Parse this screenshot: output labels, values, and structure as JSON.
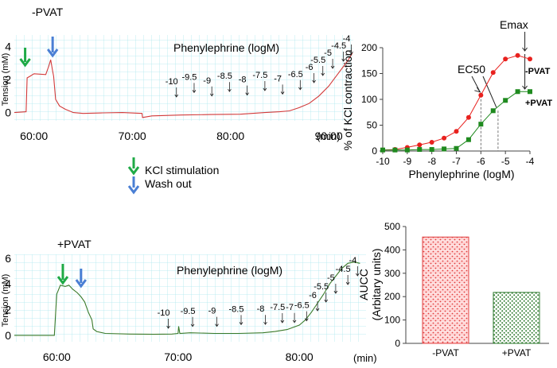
{
  "figure_legend": {
    "kcl": "KCl stimulation",
    "wash": "Wash out"
  },
  "chart_data": [
    {
      "id": "trace_no_pvat",
      "type": "line",
      "title": "-PVAT",
      "annotation": "Phenylephrine (logM)",
      "ylabel": "Tension (mM)",
      "xlabel": "(min)",
      "x_ticks": [
        "60:00",
        "70:00",
        "80:00",
        "90:00"
      ],
      "x_tick_values": [
        60,
        70,
        80,
        90
      ],
      "xlim": [
        58,
        92.5
      ],
      "y_ticks": [
        0,
        2,
        4
      ],
      "ylim": [
        -0.5,
        4.7
      ],
      "color": "#d23a3a",
      "kcl_time": 59.1,
      "wash_time": 61.9,
      "dose_labels": [
        "-10",
        "-9.5",
        "-9",
        "-8.5",
        "-8",
        "-7.5",
        "-7",
        "-6.5",
        "-6",
        "-5.5",
        "-5",
        "-4.5",
        "-4"
      ],
      "dose_times": [
        74.5,
        76.3,
        78.1,
        79.9,
        81.7,
        83.5,
        85.3,
        87.1,
        88.5,
        89.4,
        90.4,
        91.5,
        92.3
      ],
      "trace": {
        "x": [
          58.0,
          59.2,
          59.3,
          59.6,
          60.0,
          61.2,
          61.5,
          61.7,
          61.9,
          62.0,
          62.2,
          62.6,
          63.2,
          64.0,
          65.0,
          67.0,
          69.0,
          71.0,
          71.05,
          72.0,
          75.0,
          78.0,
          81.0,
          83.5,
          85.0,
          86.0,
          87.0,
          88.0,
          89.0,
          90.0,
          90.5,
          91.0,
          91.5,
          92.0,
          92.4
        ],
        "y": [
          0.0,
          0.05,
          2.1,
          2.2,
          2.35,
          2.3,
          2.8,
          3.2,
          2.5,
          2.2,
          0.8,
          0.4,
          0.2,
          0.0,
          -0.05,
          -0.02,
          0.0,
          -0.05,
          -0.3,
          -0.2,
          -0.15,
          -0.12,
          -0.1,
          0.0,
          0.05,
          0.1,
          0.3,
          0.55,
          1.0,
          1.6,
          2.0,
          2.4,
          2.8,
          3.2,
          3.6
        ]
      }
    },
    {
      "id": "trace_pvat",
      "type": "line",
      "title": "+PVAT",
      "annotation": "Phenylephrine (logM)",
      "ylabel": "Tension (mM)",
      "xlabel": "(min)",
      "x_ticks": [
        "60:00",
        "70:00",
        "80:00"
      ],
      "x_tick_values": [
        60,
        70,
        80
      ],
      "xlim": [
        56.5,
        85.5
      ],
      "y_ticks": [
        0,
        2,
        4,
        6
      ],
      "ylim": [
        -0.5,
        6.3
      ],
      "color": "#3a7a2a",
      "kcl_time": 60.5,
      "wash_time": 62.0,
      "dose_labels": [
        "-10",
        "-9.5",
        "-9",
        "-8.5",
        "-8",
        "-7.5",
        "-7",
        "-6.5",
        "-6",
        "-5.5",
        "-5",
        "-4.5",
        "-4"
      ],
      "dose_times": [
        69.2,
        71.2,
        73.2,
        75.2,
        77.2,
        78.6,
        79.6,
        80.6,
        81.5,
        82.2,
        83.0,
        84.0,
        84.8
      ],
      "trace": {
        "x": [
          56.5,
          59.8,
          60.0,
          60.3,
          60.7,
          61.0,
          61.3,
          61.7,
          62.0,
          62.3,
          62.6,
          62.9,
          63.0,
          63.3,
          64.0,
          66.0,
          68.0,
          69.5,
          70.0,
          70.05,
          70.15,
          71.0,
          73.0,
          75.0,
          77.0,
          78.0,
          79.0,
          80.0,
          80.5,
          81.0,
          81.5,
          82.0,
          82.5,
          83.0,
          83.5,
          84.0,
          84.5,
          85.0
        ],
        "y": [
          0.0,
          0.0,
          3.2,
          3.9,
          3.8,
          3.9,
          3.6,
          3.3,
          3.0,
          2.6,
          1.8,
          1.2,
          0.5,
          0.3,
          0.15,
          0.1,
          0.08,
          0.1,
          0.15,
          0.7,
          0.15,
          0.2,
          0.15,
          0.15,
          0.2,
          0.3,
          0.45,
          0.8,
          1.2,
          1.8,
          2.5,
          3.2,
          4.0,
          4.6,
          5.2,
          5.6,
          5.7,
          5.6
        ]
      }
    },
    {
      "id": "crc",
      "type": "line",
      "xlabel": "Phenylephrine (logM)",
      "ylabel": "% of KCl contraction",
      "x": [
        -10,
        -9.5,
        -9,
        -8.5,
        -8,
        -7.5,
        -7,
        -6.5,
        -6,
        -5.5,
        -5,
        -4.5,
        -4
      ],
      "x_ticks": [
        -10,
        -9,
        -8,
        -7,
        -6,
        -5,
        -4
      ],
      "xlim": [
        -10,
        -4
      ],
      "y_ticks": [
        0,
        50,
        100,
        150,
        200
      ],
      "ylim": [
        0,
        200
      ],
      "series": [
        {
          "name": "-PVAT",
          "color": "#e8211e",
          "marker": "circle",
          "values": [
            2,
            3,
            7,
            12,
            17,
            25,
            38,
            65,
            108,
            152,
            178,
            185,
            178
          ]
        },
        {
          "name": "+PVAT",
          "color": "#1f8a1f",
          "marker": "square",
          "values": [
            2,
            2,
            2,
            3,
            3,
            4,
            5,
            22,
            52,
            78,
            98,
            115,
            115
          ]
        }
      ],
      "annotations": {
        "ec50": "EC50",
        "emax": "Emax"
      },
      "ec50_x": [
        -6,
        -5.3
      ],
      "emax_x": -4.5
    },
    {
      "id": "aucc",
      "type": "bar",
      "categories": [
        "-PVAT",
        "+PVAT"
      ],
      "values": [
        455,
        218
      ],
      "colors": [
        "#e03c3c",
        "#2e7a2e"
      ],
      "ylabel": "AUCC",
      "ylabel2": "(Arbitary units)",
      "y_ticks": [
        0,
        100,
        200,
        300,
        400,
        500
      ],
      "ylim": [
        0,
        500
      ]
    }
  ]
}
